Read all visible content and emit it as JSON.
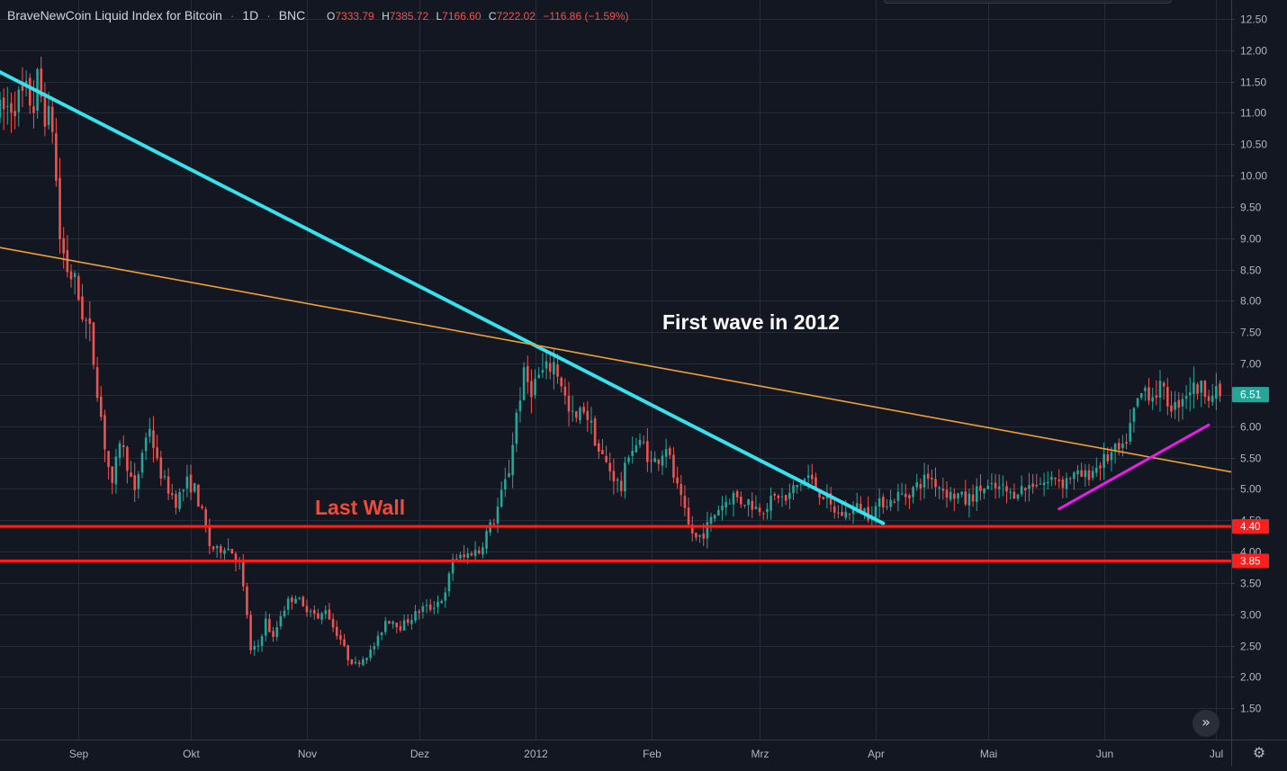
{
  "header": {
    "symbol": "BraveNewCoin Liquid Index for Bitcoin",
    "sep1": "·",
    "interval": "1D",
    "sep2": "·",
    "exchange": "BNC",
    "open_label": "O",
    "open": "7333.79",
    "high_label": "H",
    "high": "7385.72",
    "low_label": "L",
    "low": "7166.60",
    "close_label": "C",
    "close": "7222.02",
    "change": "−116.86 (−1.59%)"
  },
  "colors": {
    "background": "#131722",
    "grid": "#262b3a",
    "up": "#26a69a",
    "down": "#ef5350",
    "axis_text": "#b2b5be",
    "header_text": "#d1d4dc",
    "ohlc_values": "#ef5350",
    "trend_cyan": "#38e1ec",
    "trend_orange": "#f0a030",
    "trend_magenta": "#e81ee8",
    "support_red": "#ff1e1e",
    "last_price_badge": "#26a69a",
    "annotation_red": "#f04b3a",
    "annotation_white": "#ffffff"
  },
  "icons": {
    "scroll_right": "double-chevron-right-icon",
    "settings": "gear-icon"
  },
  "scroll_glyph": "»",
  "gear_glyph": "⚙",
  "annotations": {
    "first_wave": "First wave in 2012",
    "last_wall": "Last Wall"
  },
  "chart_data": {
    "type": "candlestick",
    "x_axis": {
      "ticks": [
        "Sep",
        "Okt",
        "Nov",
        "Dez",
        "2012",
        "Feb",
        "Mrz",
        "Apr",
        "Mai",
        "Jun",
        "Jul"
      ],
      "tick_days": [
        14,
        44,
        75,
        105,
        136,
        167,
        196,
        227,
        257,
        288,
        318
      ],
      "range_days": [
        -7,
        322
      ]
    },
    "y_axis": {
      "ticks": [
        "1.50",
        "2.00",
        "2.50",
        "3.00",
        "3.50",
        "4.00",
        "4.50",
        "5.00",
        "5.50",
        "6.00",
        "6.50",
        "7.00",
        "7.50",
        "8.00",
        "8.50",
        "9.00",
        "9.50",
        "10.00",
        "10.50",
        "11.00",
        "11.50",
        "12.00",
        "12.50"
      ],
      "ylim": [
        1.0,
        12.8
      ]
    },
    "last_price": "6.51",
    "horizontal_lines": [
      {
        "name": "support-4-40",
        "value": 4.4,
        "label": "4.40"
      },
      {
        "name": "support-3-85",
        "value": 3.85,
        "label": "3.85"
      }
    ],
    "trend_lines": [
      {
        "name": "cyan-downtrend",
        "points": [
          [
            -7,
            11.65
          ],
          [
            229,
            4.45
          ]
        ]
      },
      {
        "name": "orange-trendline",
        "points": [
          [
            -7,
            8.85
          ],
          [
            322,
            5.27
          ]
        ]
      },
      {
        "name": "magenta-uptrend",
        "points": [
          [
            276,
            4.68
          ],
          [
            316,
            6.02
          ]
        ]
      }
    ],
    "anchors": [
      [
        -7,
        11.0
      ],
      [
        0,
        11.3
      ],
      [
        2,
        11.1
      ],
      [
        3,
        11.5
      ],
      [
        5,
        11.0
      ],
      [
        7,
        10.8
      ],
      [
        9,
        9.0
      ],
      [
        11,
        8.5
      ],
      [
        13,
        8.3
      ],
      [
        15,
        7.8
      ],
      [
        17,
        7.5
      ],
      [
        19,
        6.6
      ],
      [
        21,
        5.7
      ],
      [
        23,
        5.0
      ],
      [
        25,
        5.8
      ],
      [
        27,
        5.4
      ],
      [
        29,
        4.9
      ],
      [
        31,
        5.6
      ],
      [
        33,
        6.0
      ],
      [
        35,
        5.4
      ],
      [
        37,
        5.1
      ],
      [
        40,
        4.8
      ],
      [
        43,
        5.1
      ],
      [
        45,
        5.0
      ],
      [
        47,
        4.6
      ],
      [
        49,
        4.1
      ],
      [
        51,
        4.0
      ],
      [
        53,
        4.1
      ],
      [
        55,
        4.0
      ],
      [
        57,
        3.8
      ],
      [
        59,
        3.0
      ],
      [
        60,
        2.4
      ],
      [
        62,
        2.5
      ],
      [
        64,
        2.9
      ],
      [
        66,
        2.6
      ],
      [
        68,
        3.0
      ],
      [
        70,
        3.2
      ],
      [
        72,
        3.3
      ],
      [
        74,
        3.1
      ],
      [
        76,
        3.1
      ],
      [
        78,
        2.9
      ],
      [
        80,
        3.1
      ],
      [
        82,
        2.8
      ],
      [
        84,
        2.6
      ],
      [
        86,
        2.3
      ],
      [
        88,
        2.2
      ],
      [
        90,
        2.3
      ],
      [
        92,
        2.4
      ],
      [
        94,
        2.6
      ],
      [
        96,
        2.9
      ],
      [
        98,
        2.9
      ],
      [
        100,
        2.8
      ],
      [
        102,
        2.9
      ],
      [
        104,
        3.0
      ],
      [
        106,
        3.1
      ],
      [
        108,
        3.1
      ],
      [
        110,
        3.2
      ],
      [
        112,
        3.3
      ],
      [
        114,
        3.9
      ],
      [
        117,
        3.9
      ],
      [
        119,
        4.0
      ],
      [
        121,
        4.0
      ],
      [
        123,
        4.3
      ],
      [
        125,
        4.5
      ],
      [
        127,
        4.9
      ],
      [
        129,
        5.3
      ],
      [
        131,
        6.2
      ],
      [
        133,
        6.8
      ],
      [
        135,
        6.6
      ],
      [
        137,
        6.8
      ],
      [
        139,
        6.9
      ],
      [
        141,
        7.0
      ],
      [
        143,
        6.7
      ],
      [
        145,
        6.2
      ],
      [
        147,
        6.1
      ],
      [
        149,
        6.3
      ],
      [
        151,
        6.0
      ],
      [
        153,
        5.6
      ],
      [
        155,
        5.4
      ],
      [
        157,
        5.2
      ],
      [
        159,
        5.0
      ],
      [
        161,
        5.6
      ],
      [
        163,
        5.7
      ],
      [
        165,
        5.7
      ],
      [
        167,
        5.4
      ],
      [
        169,
        5.5
      ],
      [
        171,
        5.7
      ],
      [
        173,
        5.2
      ],
      [
        175,
        4.8
      ],
      [
        177,
        4.4
      ],
      [
        179,
        4.2
      ],
      [
        181,
        4.3
      ],
      [
        183,
        4.5
      ],
      [
        185,
        4.7
      ],
      [
        187,
        4.8
      ],
      [
        189,
        4.9
      ],
      [
        191,
        4.8
      ],
      [
        193,
        4.8
      ],
      [
        195,
        4.7
      ],
      [
        197,
        4.7
      ],
      [
        199,
        4.8
      ],
      [
        201,
        4.9
      ],
      [
        203,
        4.8
      ],
      [
        205,
        5.0
      ],
      [
        207,
        5.1
      ],
      [
        209,
        5.2
      ],
      [
        211,
        5.0
      ],
      [
        213,
        4.9
      ],
      [
        215,
        4.7
      ],
      [
        217,
        4.6
      ],
      [
        219,
        4.6
      ],
      [
        221,
        4.7
      ],
      [
        223,
        4.7
      ],
      [
        225,
        4.6
      ],
      [
        227,
        4.7
      ],
      [
        229,
        4.8
      ],
      [
        231,
        4.8
      ],
      [
        233,
        4.9
      ],
      [
        235,
        4.9
      ],
      [
        237,
        5.0
      ],
      [
        239,
        5.1
      ],
      [
        241,
        5.2
      ],
      [
        243,
        5.1
      ],
      [
        245,
        5.0
      ],
      [
        247,
        4.9
      ],
      [
        249,
        4.9
      ],
      [
        251,
        4.8
      ],
      [
        253,
        4.9
      ],
      [
        255,
        5.0
      ],
      [
        257,
        5.0
      ],
      [
        259,
        5.0
      ],
      [
        261,
        5.0
      ],
      [
        263,
        4.9
      ],
      [
        265,
        5.0
      ],
      [
        267,
        5.0
      ],
      [
        269,
        5.1
      ],
      [
        271,
        5.1
      ],
      [
        273,
        5.1
      ],
      [
        275,
        5.2
      ],
      [
        277,
        5.1
      ],
      [
        279,
        5.2
      ],
      [
        281,
        5.2
      ],
      [
        283,
        5.2
      ],
      [
        285,
        5.3
      ],
      [
        287,
        5.4
      ],
      [
        289,
        5.5
      ],
      [
        291,
        5.6
      ],
      [
        293,
        5.6
      ],
      [
        295,
        6.0
      ],
      [
        297,
        6.4
      ],
      [
        299,
        6.6
      ],
      [
        301,
        6.5
      ],
      [
        303,
        6.6
      ],
      [
        305,
        6.4
      ],
      [
        307,
        6.3
      ],
      [
        309,
        6.5
      ],
      [
        311,
        6.6
      ],
      [
        313,
        6.6
      ],
      [
        315,
        6.6
      ],
      [
        317,
        6.5
      ],
      [
        319,
        6.51
      ]
    ]
  }
}
